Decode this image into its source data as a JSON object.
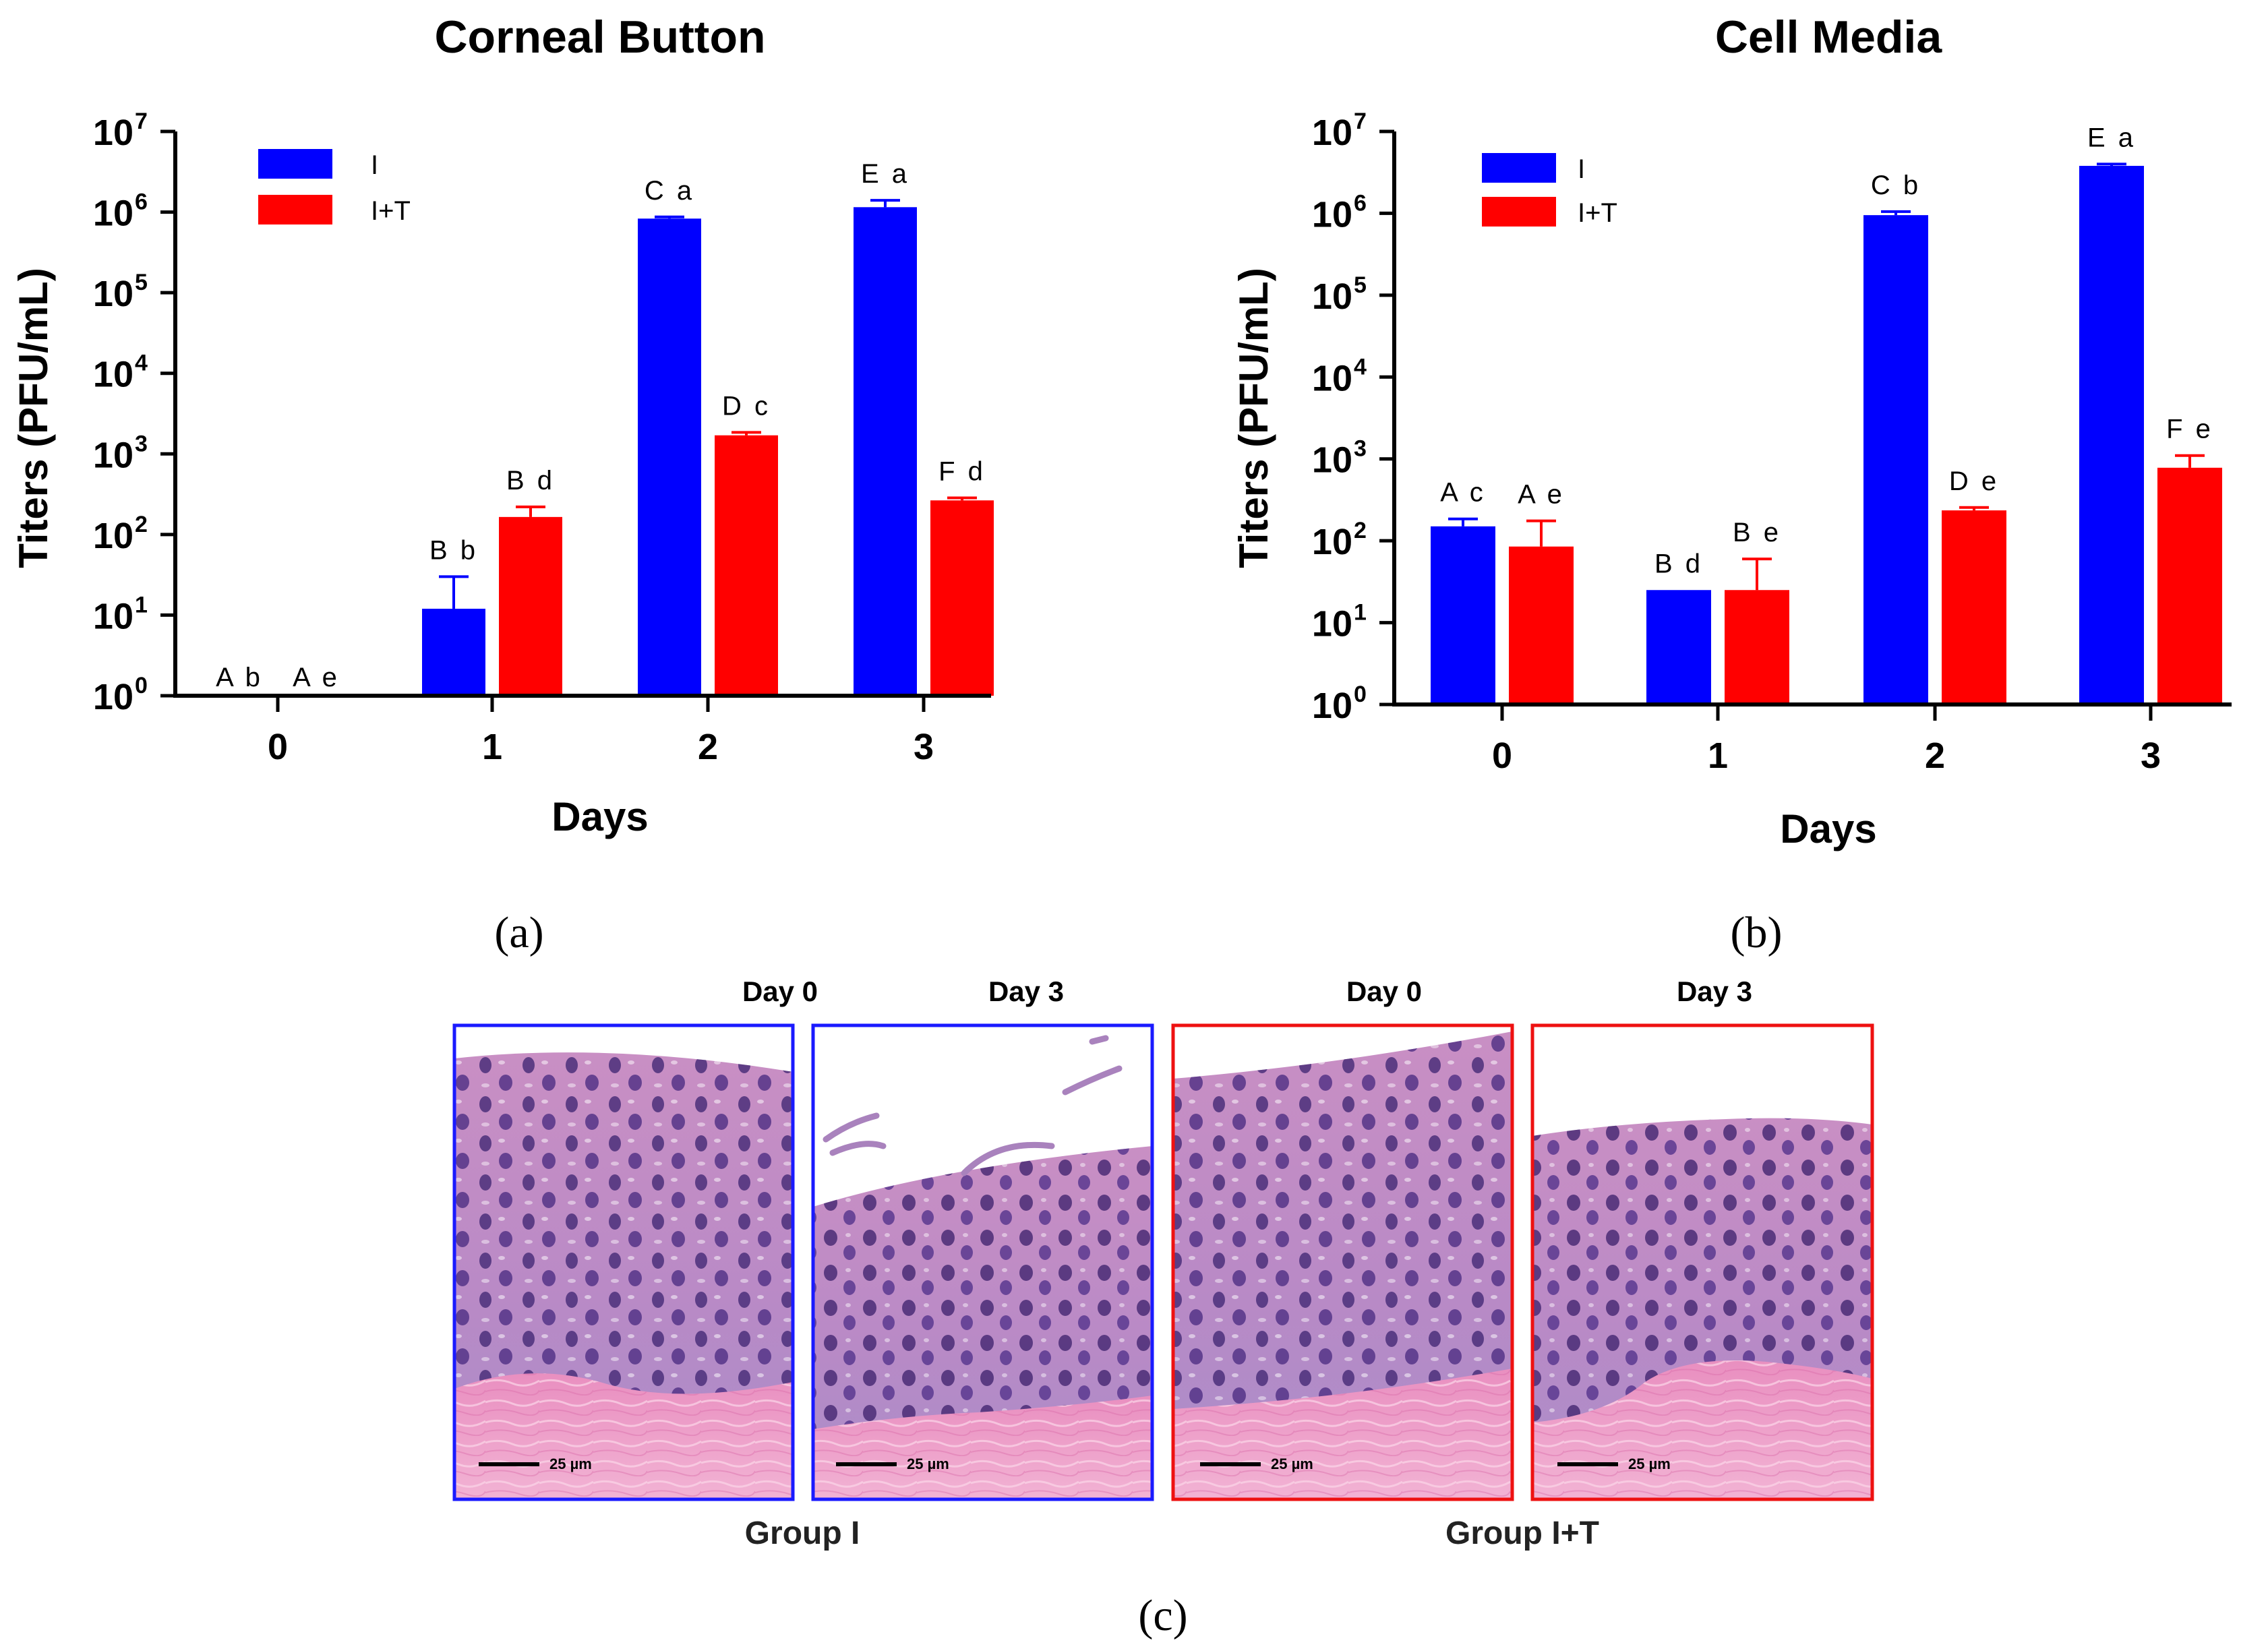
{
  "colors": {
    "I": "#0000FF",
    "I+T": "#FF0000",
    "section_I": "#1a1aff",
    "section_IT": "#ee1111"
  },
  "chart_data": [
    {
      "id": "a",
      "type": "bar",
      "scale": "log",
      "title": "Corneal Button",
      "xlabel": "Days",
      "ylabel": "Titers (PFU/mL)",
      "ylim": [
        1,
        10000000
      ],
      "y_ticks": [
        {
          "base": "10",
          "exp": "0",
          "value": 1
        },
        {
          "base": "10",
          "exp": "1",
          "value": 10
        },
        {
          "base": "10",
          "exp": "2",
          "value": 100
        },
        {
          "base": "10",
          "exp": "3",
          "value": 1000
        },
        {
          "base": "10",
          "exp": "4",
          "value": 10000
        },
        {
          "base": "10",
          "exp": "5",
          "value": 100000
        },
        {
          "base": "10",
          "exp": "6",
          "value": 1000000
        },
        {
          "base": "10",
          "exp": "7",
          "value": 10000000
        }
      ],
      "categories": [
        "0",
        "1",
        "2",
        "3"
      ],
      "legend_position": "top-left",
      "series": [
        {
          "name": "I",
          "values": [
            1,
            12,
            830000,
            1150000
          ],
          "err": [
            0,
            30,
            870000,
            1400000
          ],
          "letters": [
            "A b",
            "B b",
            "C a",
            "E a"
          ]
        },
        {
          "name": "I+T",
          "values": [
            1,
            165,
            1700,
            265
          ],
          "err": [
            0,
            220,
            1850,
            285
          ],
          "letters": [
            "A e",
            "B d",
            "D c",
            "F d"
          ]
        }
      ],
      "panel_label": "(a)"
    },
    {
      "id": "b",
      "type": "bar",
      "scale": "log",
      "title": "Cell Media",
      "xlabel": "Days",
      "ylabel": "Titers (PFU/mL)",
      "ylim": [
        1,
        10000000
      ],
      "y_ticks": [
        {
          "base": "10",
          "exp": "0",
          "value": 1
        },
        {
          "base": "10",
          "exp": "1",
          "value": 10
        },
        {
          "base": "10",
          "exp": "2",
          "value": 100
        },
        {
          "base": "10",
          "exp": "3",
          "value": 1000
        },
        {
          "base": "10",
          "exp": "4",
          "value": 10000
        },
        {
          "base": "10",
          "exp": "5",
          "value": 100000
        },
        {
          "base": "10",
          "exp": "6",
          "value": 1000000
        },
        {
          "base": "10",
          "exp": "7",
          "value": 10000000
        }
      ],
      "categories": [
        "0",
        "1",
        "2",
        "3"
      ],
      "legend_position": "top-left",
      "series": [
        {
          "name": "I",
          "values": [
            150,
            25,
            950000,
            3800000
          ],
          "err": [
            185,
            25,
            1050000,
            4000000
          ],
          "letters": [
            "A c",
            "B d",
            "C b",
            "E a"
          ]
        },
        {
          "name": "I+T",
          "values": [
            85,
            25,
            235,
            780
          ],
          "err": [
            175,
            60,
            255,
            1100
          ],
          "letters": [
            "A e",
            "B e",
            "D e",
            "F e"
          ]
        }
      ],
      "panel_label": "(b)"
    }
  ],
  "histology": {
    "panels": [
      {
        "heading": "Day 0",
        "group": "I",
        "scale_bar": "25 µm"
      },
      {
        "heading": "Day 3",
        "group": "I",
        "scale_bar": "25 µm"
      },
      {
        "heading": "Day 0",
        "group": "I+T",
        "scale_bar": "25 µm"
      },
      {
        "heading": "Day 3",
        "group": "I+T",
        "scale_bar": "25 µm"
      }
    ],
    "group_labels": [
      "Group I",
      "Group I+T"
    ],
    "panel_label": "(c)"
  }
}
